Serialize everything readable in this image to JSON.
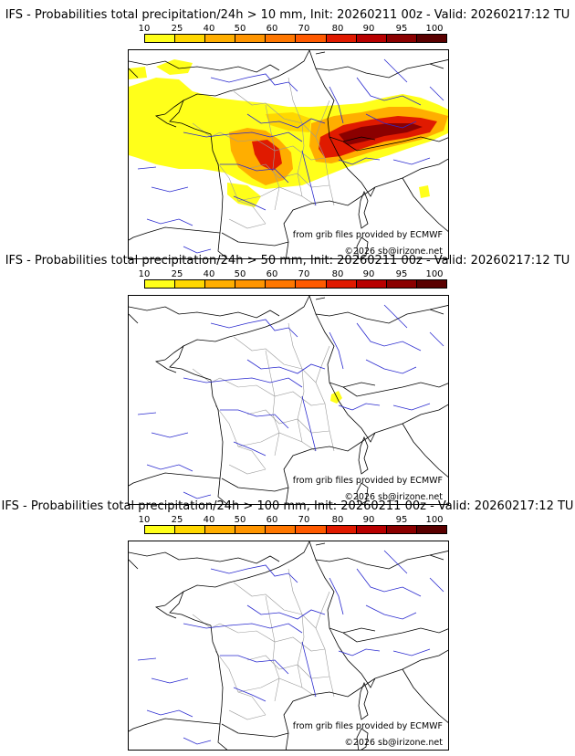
{
  "colorbar": {
    "ticks": [
      "10",
      "25",
      "40",
      "50",
      "60",
      "70",
      "80",
      "90",
      "95",
      "100"
    ],
    "colors": [
      "#ffff1a",
      "#ffd700",
      "#ffae00",
      "#ff9500",
      "#ff7700",
      "#ff5a00",
      "#e01a00",
      "#b80000",
      "#8b0000",
      "#5a0000"
    ]
  },
  "map_colors": {
    "coast": "#000000",
    "rivers": "#2a2acf",
    "admin": "#9a9a9a",
    "low_prob": "#ffff1a",
    "mid_prob": "#ffae00",
    "high_prob": "#e01a00",
    "max_prob": "#8b0000"
  },
  "panels": [
    {
      "title": "IFS - Probabilities total precipitation/24h > 10 mm, Init: 20260211 00z - Valid: 20260217:12 TU",
      "threshold_mm": 10,
      "credit_source": "from grib files provided by ECMWF",
      "credit_copyright": "©2026 sb@irizone.net"
    },
    {
      "title": "IFS - Probabilities total precipitation/24h > 50 mm, Init: 20260211 00z - Valid: 20260217:12 TU",
      "threshold_mm": 50,
      "credit_source": "from grib files provided by ECMWF",
      "credit_copyright": "©2026 sb@irizone.net"
    },
    {
      "title": "IFS - Probabilities total precipitation/24h > 100 mm, Init: 20260211 00z - Valid: 20260217:12 TU",
      "threshold_mm": 100,
      "credit_source": "from grib files provided by ECMWF",
      "credit_copyright": "©2026 sb@irizone.net"
    }
  ]
}
